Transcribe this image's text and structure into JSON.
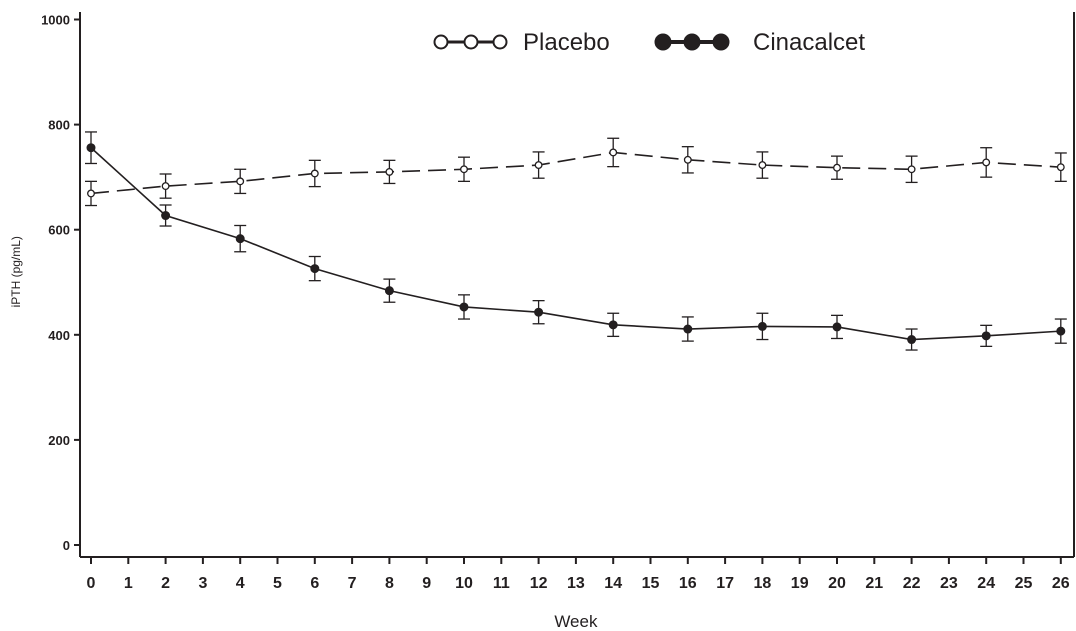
{
  "chart_data": {
    "type": "line",
    "xlabel": "Week",
    "ylabel": "iPTH (pg/mL)",
    "xlim": [
      0,
      26
    ],
    "ylim": [
      0,
      1000
    ],
    "x_ticks": [
      "0",
      "1",
      "2",
      "3",
      "4",
      "5",
      "6",
      "7",
      "8",
      "9",
      "10",
      "11",
      "12",
      "13",
      "14",
      "15",
      "16",
      "17",
      "18",
      "19",
      "20",
      "21",
      "22",
      "23",
      "24",
      "25",
      "26"
    ],
    "y_ticks": [
      "0",
      "200",
      "400",
      "600",
      "800",
      "1000"
    ],
    "grid": false,
    "legend_position": "top-center",
    "series": [
      {
        "name": "Placebo",
        "marker": "open-circle",
        "line_style": "dashed",
        "color": "#231f20",
        "x": [
          0,
          2,
          4,
          6,
          8,
          10,
          12,
          14,
          16,
          18,
          20,
          22,
          24,
          26
        ],
        "y": [
          669,
          683,
          692,
          707,
          710,
          715,
          723,
          747,
          733,
          723,
          718,
          715,
          728,
          719
        ],
        "error": [
          23,
          23,
          23,
          25,
          22,
          23,
          25,
          27,
          25,
          25,
          22,
          25,
          28,
          27
        ]
      },
      {
        "name": "Cinacalcet",
        "marker": "filled-circle",
        "line_style": "solid",
        "color": "#231f20",
        "x": [
          0,
          2,
          4,
          6,
          8,
          10,
          12,
          14,
          16,
          18,
          20,
          22,
          24,
          26
        ],
        "y": [
          756,
          627,
          583,
          526,
          484,
          453,
          443,
          419,
          411,
          416,
          415,
          391,
          398,
          407
        ],
        "error": [
          30,
          20,
          25,
          23,
          22,
          23,
          22,
          22,
          23,
          25,
          22,
          20,
          20,
          23
        ]
      }
    ]
  }
}
